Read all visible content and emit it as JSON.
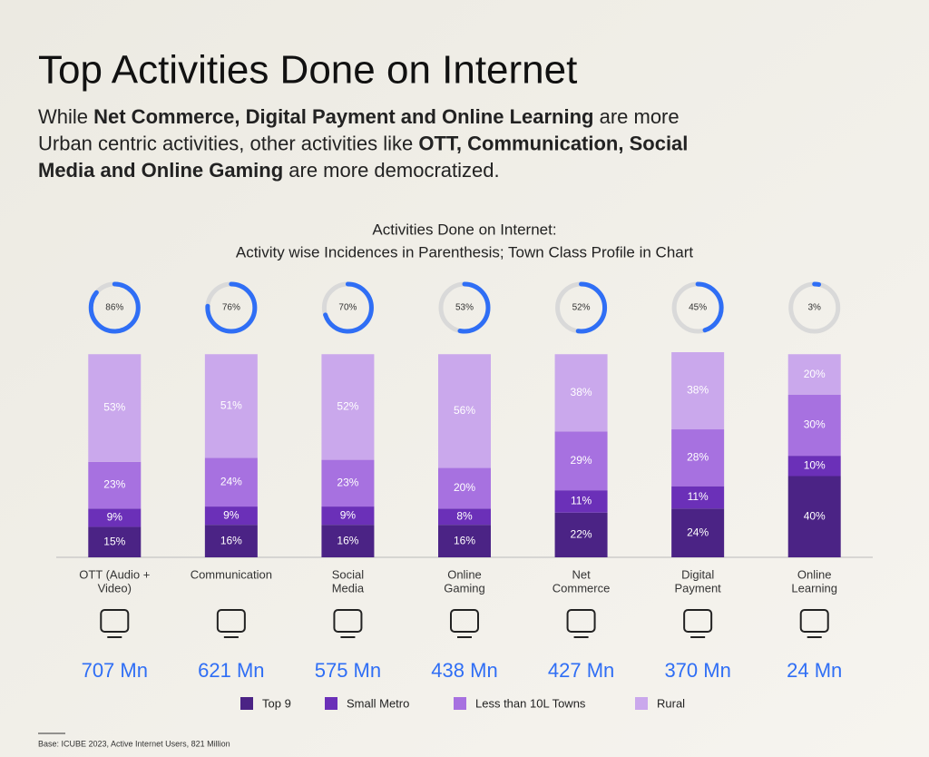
{
  "chart_data": {
    "type": "stacked-bar",
    "title": "Top Activities Done on Internet",
    "subtitle": [
      [
        {
          "text": "While ",
          "bold": false
        },
        {
          "text": "Net Commerce, Digital Payment and Online Learning",
          "bold": true
        },
        {
          "text": " are more",
          "bold": false
        }
      ],
      [
        {
          "text": "Urban centric activities, other activities like ",
          "bold": false
        },
        {
          "text": "OTT, Communication, Social",
          "bold": true
        }
      ],
      [
        {
          "text": "Media and Online Gaming",
          "bold": true
        },
        {
          "text": " are more democratized.",
          "bold": false
        }
      ]
    ],
    "chart_title": [
      "Activities Done on Internet:",
      "Activity wise Incidences in Parenthesis; Town Class Profile in Chart"
    ],
    "categories": [
      [
        "OTT (Audio +",
        "Video)"
      ],
      [
        "Communication"
      ],
      [
        "Social",
        "Media"
      ],
      [
        "Online",
        "Gaming"
      ],
      [
        "Net",
        "Commerce"
      ],
      [
        "Digital",
        "Payment"
      ],
      [
        "Online",
        "Learning"
      ]
    ],
    "incidence": {
      "values": [
        86,
        76,
        70,
        53,
        52,
        45,
        3
      ],
      "value_labels": [
        "86%",
        "76%",
        "70%",
        "53%",
        "52%",
        "45%",
        "3%"
      ],
      "color": "#2f6ef5",
      "track_color": "#d9d9d9"
    },
    "series": [
      {
        "name": "Top 9",
        "color": "#4b2385",
        "values": [
          15,
          16,
          16,
          16,
          22,
          24,
          40
        ],
        "value_labels": [
          "15%",
          "16%",
          "16%",
          "16%",
          "22%",
          "24%",
          "40%"
        ]
      },
      {
        "name": "Small Metro",
        "color": "#6b30b8",
        "values": [
          9,
          9,
          9,
          8,
          11,
          11,
          10
        ],
        "value_labels": [
          "9%",
          "9%",
          "9%",
          "8%",
          "11%",
          "11%",
          "10%"
        ]
      },
      {
        "name": "Less than 10L Towns",
        "color": "#a771e0",
        "values": [
          23,
          24,
          23,
          20,
          29,
          28,
          30
        ],
        "value_labels": [
          "23%",
          "24%",
          "23%",
          "20%",
          "29%",
          "28%",
          "30%"
        ]
      },
      {
        "name": "Rural",
        "color": "#caa8ec",
        "values": [
          53,
          51,
          52,
          56,
          38,
          38,
          20
        ],
        "value_labels": [
          "53%",
          "51%",
          "52%",
          "56%",
          "38%",
          "38%",
          "20%"
        ]
      }
    ],
    "users": {
      "values": [
        707,
        621,
        575,
        438,
        427,
        370,
        24
      ],
      "value_labels": [
        "707 Mn",
        "621 Mn",
        "575 Mn",
        "438 Mn",
        "427 Mn",
        "370 Mn",
        "24 Mn"
      ],
      "color": "#2f6ef5"
    },
    "footnote": "Base: ICUBE 2023, Active Internet Users, 821 Million"
  }
}
